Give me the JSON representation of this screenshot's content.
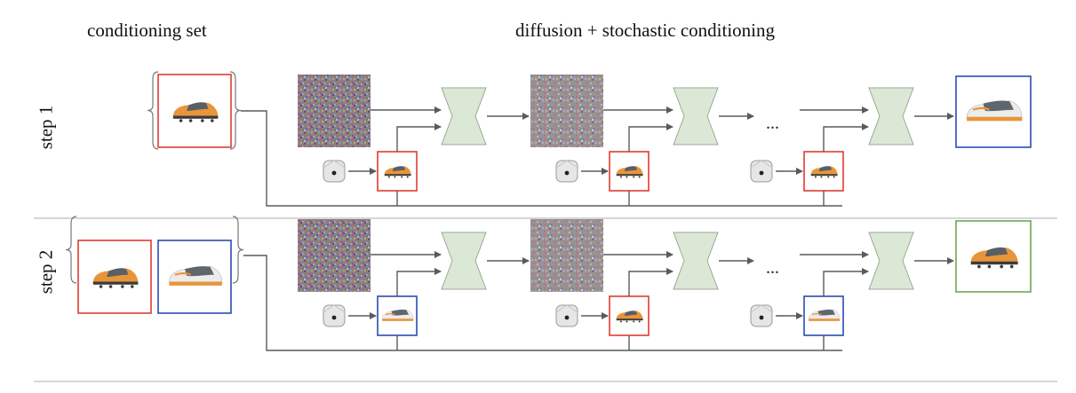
{
  "headers": {
    "conditioning_set": "conditioning set",
    "diffusion": "diffusion + stochastic conditioning"
  },
  "rows": [
    {
      "label": "step 1",
      "conditioning_images": [
        "red"
      ],
      "cond_frames": [
        "red",
        "red",
        "red"
      ],
      "output_frame": "blue",
      "ellipsis": "..."
    },
    {
      "label": "step 2",
      "conditioning_images": [
        "red",
        "blue"
      ],
      "cond_frames": [
        "blue",
        "red",
        "blue"
      ],
      "output_frame": "green",
      "ellipsis": "..."
    }
  ],
  "colors": {
    "red": "#e03c31",
    "blue": "#2a4db3",
    "green": "#6aa84f",
    "unet": "#dbe8d5",
    "line": "#5a5a5a",
    "divider": "#bdbdbd"
  },
  "icons": [
    "shoe-icon",
    "dice-icon",
    "noise-image",
    "unet-block"
  ]
}
